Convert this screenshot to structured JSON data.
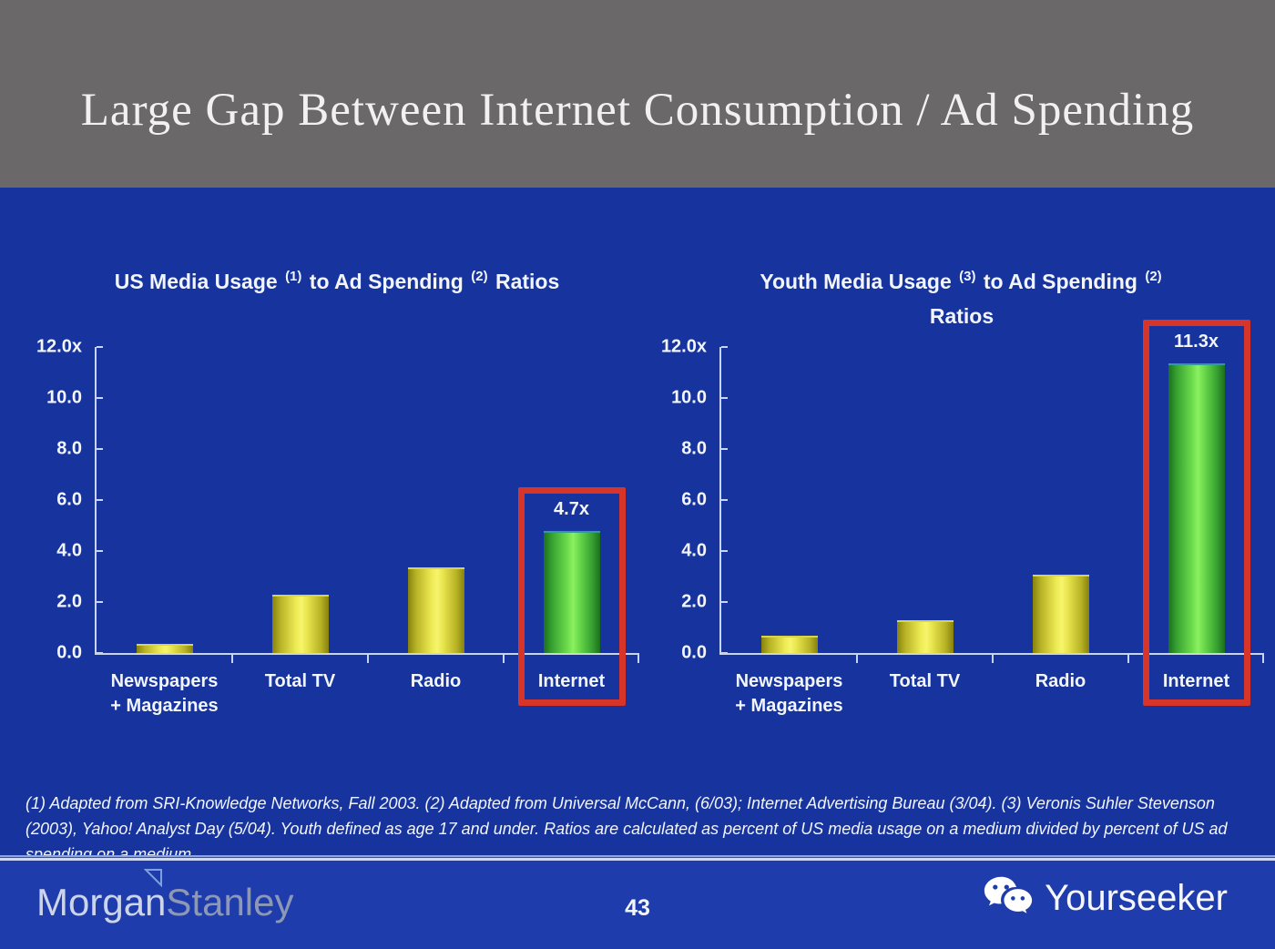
{
  "header": {
    "title": "Large Gap Between Internet Consumption / Ad Spending"
  },
  "chart_data": {
    "type": "bar",
    "charts": [
      {
        "title": "US Media Usage (1) to Ad Spending (2) Ratios",
        "title_lines": [
          [
            {
              "t": "US Media Usage "
            },
            {
              "sup": "(1)"
            },
            {
              "t": " to Ad Spending "
            },
            {
              "sup": "(2)"
            },
            {
              "t": " Ratios"
            }
          ]
        ],
        "ylim": [
          0,
          12
        ],
        "y_ticks": [
          "12.0x",
          "10.0",
          "8.0",
          "6.0",
          "4.0",
          "2.0",
          "0.0"
        ],
        "categories": [
          "Newspapers + Magazines",
          "Total TV",
          "Radio",
          "Internet"
        ],
        "values": [
          0.3,
          2.2,
          3.3,
          4.7
        ],
        "bars": [
          {
            "label_lines": [
              "Newspapers",
              "+ Magazines"
            ],
            "value": 0.3,
            "color": "yellow"
          },
          {
            "label_lines": [
              "Total TV"
            ],
            "value": 2.2,
            "color": "yellow"
          },
          {
            "label_lines": [
              "Radio"
            ],
            "value": 3.3,
            "color": "yellow"
          },
          {
            "label_lines": [
              "Internet"
            ],
            "value": 4.7,
            "color": "green",
            "value_label": "4.7x",
            "highlighted": true
          }
        ]
      },
      {
        "title": "Youth Media Usage (3) to Ad Spending (2) Ratios",
        "title_lines": [
          [
            {
              "t": "Youth Media Usage "
            },
            {
              "sup": "(3)"
            },
            {
              "t": " to Ad Spending "
            },
            {
              "sup": "(2)"
            }
          ],
          [
            {
              "t": "Ratios"
            }
          ]
        ],
        "ylim": [
          0,
          12
        ],
        "y_ticks": [
          "12.0x",
          "10.0",
          "8.0",
          "6.0",
          "4.0",
          "2.0",
          "0.0"
        ],
        "categories": [
          "Newspapers + Magazines",
          "Total TV",
          "Radio",
          "Internet"
        ],
        "values": [
          0.6,
          1.2,
          3.0,
          11.3
        ],
        "bars": [
          {
            "label_lines": [
              "Newspapers",
              "+ Magazines"
            ],
            "value": 0.6,
            "color": "yellow"
          },
          {
            "label_lines": [
              "Total TV"
            ],
            "value": 1.2,
            "color": "yellow"
          },
          {
            "label_lines": [
              "Radio"
            ],
            "value": 3.0,
            "color": "yellow"
          },
          {
            "label_lines": [
              "Internet"
            ],
            "value": 11.3,
            "color": "green",
            "value_label": "11.3x",
            "highlighted": true
          }
        ]
      }
    ],
    "legend": "none",
    "grid": false,
    "bar_colors": {
      "yellow": "#e8e43c",
      "green": "#5ed147"
    },
    "highlight_box_color": "#d8352a"
  },
  "footnote": "(1) Adapted from SRI-Knowledge Networks, Fall 2003.  (2) Adapted from Universal McCann, (6/03); Internet Advertising Bureau (3/04). (3) Veronis Suhler Stevenson (2003), Yahoo! Analyst Day (5/04).  Youth defined as age 17 and under.  Ratios are calculated as percent of US media usage on a medium divided by percent of US ad spending on a medium.",
  "footer": {
    "logo_part1": "Morgan",
    "logo_part2": "Stanley",
    "logo_icon": "morgan-stanley-triangle-icon",
    "page_number": "43",
    "brand": "Yourseeker",
    "brand_icon": "wechat-icon"
  },
  "colors": {
    "header_bg": "#6a6868",
    "body_bg": "#16339e",
    "footer_bg": "#1e3cac",
    "axis": "#c8d4f0",
    "text": "#f2f5fc"
  }
}
